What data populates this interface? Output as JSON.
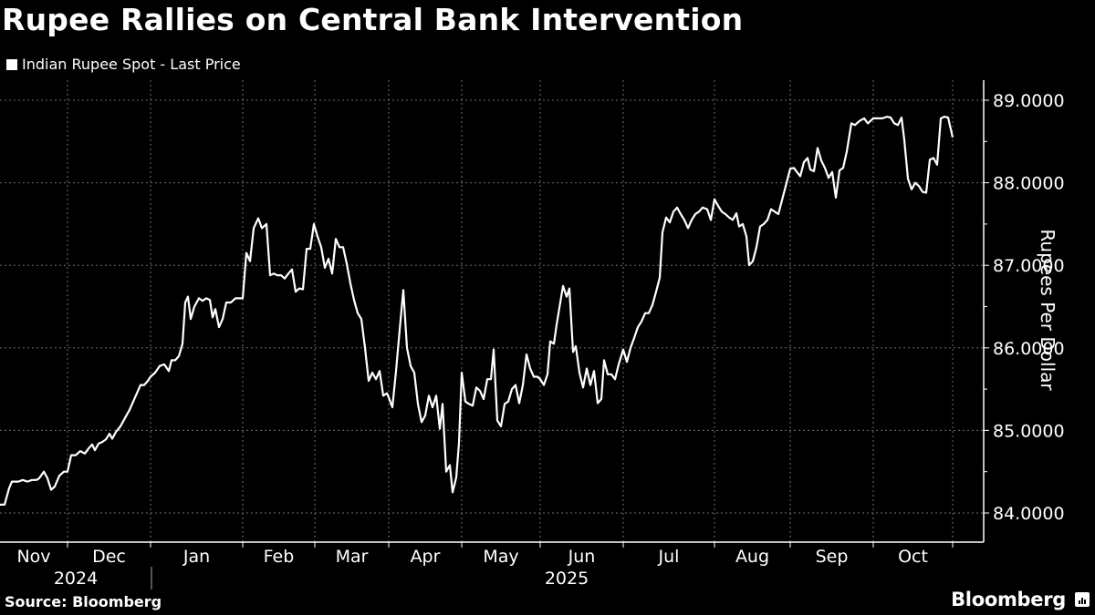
{
  "header": {
    "title": "Rupee Rallies on Central Bank Intervention",
    "legend_label": "Indian Rupee Spot - Last Price"
  },
  "footer": {
    "source": "Source: Bloomberg",
    "brand": "Bloomberg"
  },
  "colors": {
    "background": "#000000",
    "line": "#ffffff",
    "grid": "#6e6e6e",
    "text": "#ffffff"
  },
  "chart_data": {
    "type": "line",
    "title": "Rupee Rallies on Central Bank Intervention",
    "xlabel": "",
    "ylabel": "Rupees Per Dollar",
    "ylim": [
      83.6,
      89.2
    ],
    "yticks": [
      "84.0000",
      "85.0000",
      "86.0000",
      "87.0000",
      "88.0000",
      "89.0000"
    ],
    "ytick_values": [
      84,
      85,
      86,
      87,
      88,
      89
    ],
    "grid": true,
    "legend_position": "top-left",
    "x_month_labels": [
      "Nov",
      "Dec",
      "Jan",
      "Feb",
      "Mar",
      "Apr",
      "May",
      "Jun",
      "Jul",
      "Aug",
      "Sep",
      "Oct"
    ],
    "x_year_labels": [
      "2024",
      "2025"
    ],
    "series": [
      {
        "name": "Indian Rupee Spot - Last Price",
        "points": [
          [
            0,
            84.1
          ],
          [
            5,
            84.1
          ],
          [
            10,
            84.3
          ],
          [
            13,
            84.38
          ],
          [
            20,
            84.38
          ],
          [
            25,
            84.4
          ],
          [
            30,
            84.38
          ],
          [
            35,
            84.4
          ],
          [
            40,
            84.4
          ],
          [
            43,
            84.42
          ],
          [
            48,
            84.5
          ],
          [
            52,
            84.42
          ],
          [
            56,
            84.28
          ],
          [
            60,
            84.32
          ],
          [
            65,
            84.45
          ],
          [
            70,
            84.5
          ],
          [
            74,
            84.5
          ],
          [
            78,
            84.7
          ],
          [
            83,
            84.7
          ],
          [
            88,
            84.75
          ],
          [
            93,
            84.72
          ],
          [
            97,
            84.78
          ],
          [
            101,
            84.83
          ],
          [
            104,
            84.76
          ],
          [
            108,
            84.84
          ],
          [
            112,
            84.86
          ],
          [
            116,
            84.89
          ],
          [
            120,
            84.96
          ],
          [
            123,
            84.9
          ],
          [
            127,
            84.98
          ],
          [
            132,
            85.05
          ],
          [
            137,
            85.15
          ],
          [
            142,
            85.25
          ],
          [
            148,
            85.4
          ],
          [
            154,
            85.55
          ],
          [
            158,
            85.55
          ],
          [
            162,
            85.6
          ],
          [
            165,
            85.65
          ],
          [
            170,
            85.7
          ],
          [
            175,
            85.78
          ],
          [
            180,
            85.8
          ],
          [
            185,
            85.72
          ],
          [
            188,
            85.85
          ],
          [
            192,
            85.85
          ],
          [
            196,
            85.9
          ],
          [
            200,
            86.05
          ],
          [
            203,
            86.55
          ],
          [
            206,
            86.62
          ],
          [
            209,
            86.35
          ],
          [
            213,
            86.5
          ],
          [
            218,
            86.6
          ],
          [
            222,
            86.57
          ],
          [
            226,
            86.6
          ],
          [
            230,
            86.58
          ],
          [
            233,
            86.37
          ],
          [
            236,
            86.47
          ],
          [
            240,
            86.25
          ],
          [
            244,
            86.35
          ],
          [
            248,
            86.55
          ],
          [
            253,
            86.55
          ],
          [
            258,
            86.6
          ],
          [
            262,
            86.6
          ],
          [
            266,
            86.6
          ],
          [
            270,
            87.15
          ],
          [
            274,
            87.05
          ],
          [
            278,
            87.45
          ],
          [
            283,
            87.57
          ],
          [
            287,
            87.45
          ],
          [
            292,
            87.5
          ],
          [
            296,
            86.88
          ],
          [
            300,
            86.9
          ],
          [
            304,
            86.88
          ],
          [
            308,
            86.88
          ],
          [
            312,
            86.84
          ],
          [
            316,
            86.9
          ],
          [
            320,
            86.95
          ],
          [
            324,
            86.68
          ],
          [
            328,
            86.72
          ],
          [
            332,
            86.71
          ],
          [
            336,
            87.2
          ],
          [
            340,
            87.2
          ],
          [
            344,
            87.5
          ],
          [
            348,
            87.35
          ],
          [
            352,
            87.22
          ],
          [
            356,
            86.97
          ],
          [
            360,
            87.08
          ],
          [
            364,
            86.9
          ],
          [
            368,
            87.32
          ],
          [
            372,
            87.22
          ],
          [
            376,
            87.22
          ],
          [
            380,
            87.02
          ],
          [
            384,
            86.78
          ],
          [
            388,
            86.58
          ],
          [
            392,
            86.42
          ],
          [
            396,
            86.35
          ],
          [
            400,
            86.0
          ],
          [
            404,
            85.6
          ],
          [
            408,
            85.7
          ],
          [
            412,
            85.62
          ],
          [
            416,
            85.72
          ],
          [
            420,
            85.42
          ],
          [
            424,
            85.45
          ],
          [
            426,
            85.4
          ],
          [
            430,
            85.28
          ],
          [
            434,
            85.72
          ],
          [
            438,
            86.22
          ],
          [
            442,
            86.7
          ],
          [
            446,
            86.0
          ],
          [
            450,
            85.78
          ],
          [
            454,
            85.7
          ],
          [
            458,
            85.32
          ],
          [
            462,
            85.1
          ],
          [
            466,
            85.18
          ],
          [
            470,
            85.42
          ],
          [
            474,
            85.28
          ],
          [
            478,
            85.42
          ],
          [
            482,
            85.02
          ],
          [
            485,
            85.32
          ],
          [
            489,
            84.5
          ],
          [
            493,
            84.58
          ],
          [
            496,
            84.25
          ],
          [
            500,
            84.43
          ],
          [
            503,
            84.85
          ],
          [
            506,
            85.7
          ],
          [
            510,
            85.35
          ],
          [
            514,
            85.32
          ],
          [
            518,
            85.3
          ],
          [
            522,
            85.52
          ],
          [
            526,
            85.48
          ],
          [
            530,
            85.38
          ],
          [
            534,
            85.62
          ],
          [
            538,
            85.62
          ],
          [
            541,
            85.98
          ],
          [
            545,
            85.12
          ],
          [
            549,
            85.05
          ],
          [
            553,
            85.32
          ],
          [
            557,
            85.35
          ],
          [
            561,
            85.5
          ],
          [
            565,
            85.55
          ],
          [
            569,
            85.33
          ],
          [
            573,
            85.55
          ],
          [
            577,
            85.92
          ],
          [
            581,
            85.75
          ],
          [
            585,
            85.65
          ],
          [
            589,
            85.65
          ],
          [
            592,
            85.62
          ],
          [
            596,
            85.55
          ],
          [
            600,
            85.68
          ],
          [
            603,
            86.08
          ],
          [
            607,
            86.05
          ],
          [
            610,
            86.28
          ],
          [
            614,
            86.55
          ],
          [
            617,
            86.75
          ],
          [
            621,
            86.62
          ],
          [
            624,
            86.72
          ],
          [
            628,
            85.95
          ],
          [
            631,
            86.02
          ],
          [
            635,
            85.7
          ],
          [
            639,
            85.52
          ],
          [
            643,
            85.75
          ],
          [
            647,
            85.55
          ],
          [
            651,
            85.72
          ],
          [
            655,
            85.33
          ],
          [
            659,
            85.38
          ],
          [
            662,
            85.85
          ],
          [
            666,
            85.68
          ],
          [
            670,
            85.68
          ],
          [
            674,
            85.62
          ],
          [
            678,
            85.8
          ],
          [
            683,
            85.98
          ],
          [
            687,
            85.83
          ],
          [
            691,
            86.0
          ],
          [
            695,
            86.12
          ],
          [
            699,
            86.25
          ],
          [
            703,
            86.32
          ],
          [
            707,
            86.42
          ],
          [
            711,
            86.42
          ],
          [
            715,
            86.52
          ],
          [
            719,
            86.68
          ],
          [
            723,
            86.85
          ],
          [
            726,
            87.4
          ],
          [
            730,
            87.58
          ],
          [
            734,
            87.52
          ],
          [
            738,
            87.65
          ],
          [
            742,
            87.7
          ],
          [
            746,
            87.62
          ],
          [
            750,
            87.55
          ],
          [
            754,
            87.45
          ],
          [
            758,
            87.55
          ],
          [
            762,
            87.62
          ],
          [
            766,
            87.65
          ],
          [
            770,
            87.7
          ],
          [
            775,
            87.68
          ],
          [
            779,
            87.55
          ],
          [
            783,
            87.8
          ],
          [
            787,
            87.72
          ],
          [
            791,
            87.65
          ],
          [
            795,
            87.62
          ],
          [
            799,
            87.58
          ],
          [
            803,
            87.55
          ],
          [
            807,
            87.63
          ],
          [
            810,
            87.47
          ],
          [
            814,
            87.5
          ],
          [
            818,
            87.35
          ],
          [
            821,
            87.0
          ],
          [
            825,
            87.05
          ],
          [
            829,
            87.22
          ],
          [
            833,
            87.47
          ],
          [
            837,
            87.5
          ],
          [
            841,
            87.55
          ],
          [
            845,
            87.68
          ],
          [
            849,
            87.65
          ],
          [
            853,
            87.62
          ],
          [
            866,
            88.17
          ],
          [
            870,
            88.18
          ],
          [
            874,
            88.12
          ],
          [
            877,
            88.08
          ],
          [
            881,
            88.25
          ],
          [
            885,
            88.3
          ],
          [
            888,
            88.16
          ],
          [
            892,
            88.14
          ],
          [
            896,
            88.42
          ],
          [
            900,
            88.27
          ],
          [
            904,
            88.18
          ],
          [
            908,
            88.06
          ],
          [
            912,
            88.13
          ],
          [
            916,
            87.82
          ],
          [
            920,
            88.15
          ],
          [
            924,
            88.18
          ],
          [
            928,
            88.38
          ],
          [
            933,
            88.72
          ],
          [
            937,
            88.7
          ],
          [
            942,
            88.75
          ],
          [
            947,
            88.78
          ],
          [
            951,
            88.72
          ],
          [
            957,
            88.78
          ],
          [
            962,
            88.78
          ],
          [
            967,
            88.78
          ],
          [
            972,
            88.8
          ],
          [
            976,
            88.79
          ],
          [
            980,
            88.72
          ],
          [
            984,
            88.7
          ],
          [
            988,
            88.79
          ],
          [
            991,
            88.52
          ],
          [
            995,
            88.05
          ],
          [
            999,
            87.92
          ],
          [
            1003,
            88.0
          ],
          [
            1007,
            87.96
          ],
          [
            1011,
            87.89
          ],
          [
            1015,
            87.88
          ],
          [
            1019,
            88.28
          ],
          [
            1023,
            88.3
          ],
          [
            1027,
            88.22
          ],
          [
            1031,
            88.78
          ],
          [
            1035,
            88.8
          ],
          [
            1039,
            88.79
          ],
          [
            1044,
            88.55
          ]
        ],
        "x_units": "pixel position along time axis (0 = start of Nov 2024, 1078 = axis end)"
      }
    ],
    "approx_values": {
      "start": 84.1,
      "low": 84.25,
      "low_period": "Apr 2025",
      "feb_peak": 87.57,
      "apr_spike": 86.7,
      "record_high_approx": 88.8,
      "last": 88.55
    }
  }
}
